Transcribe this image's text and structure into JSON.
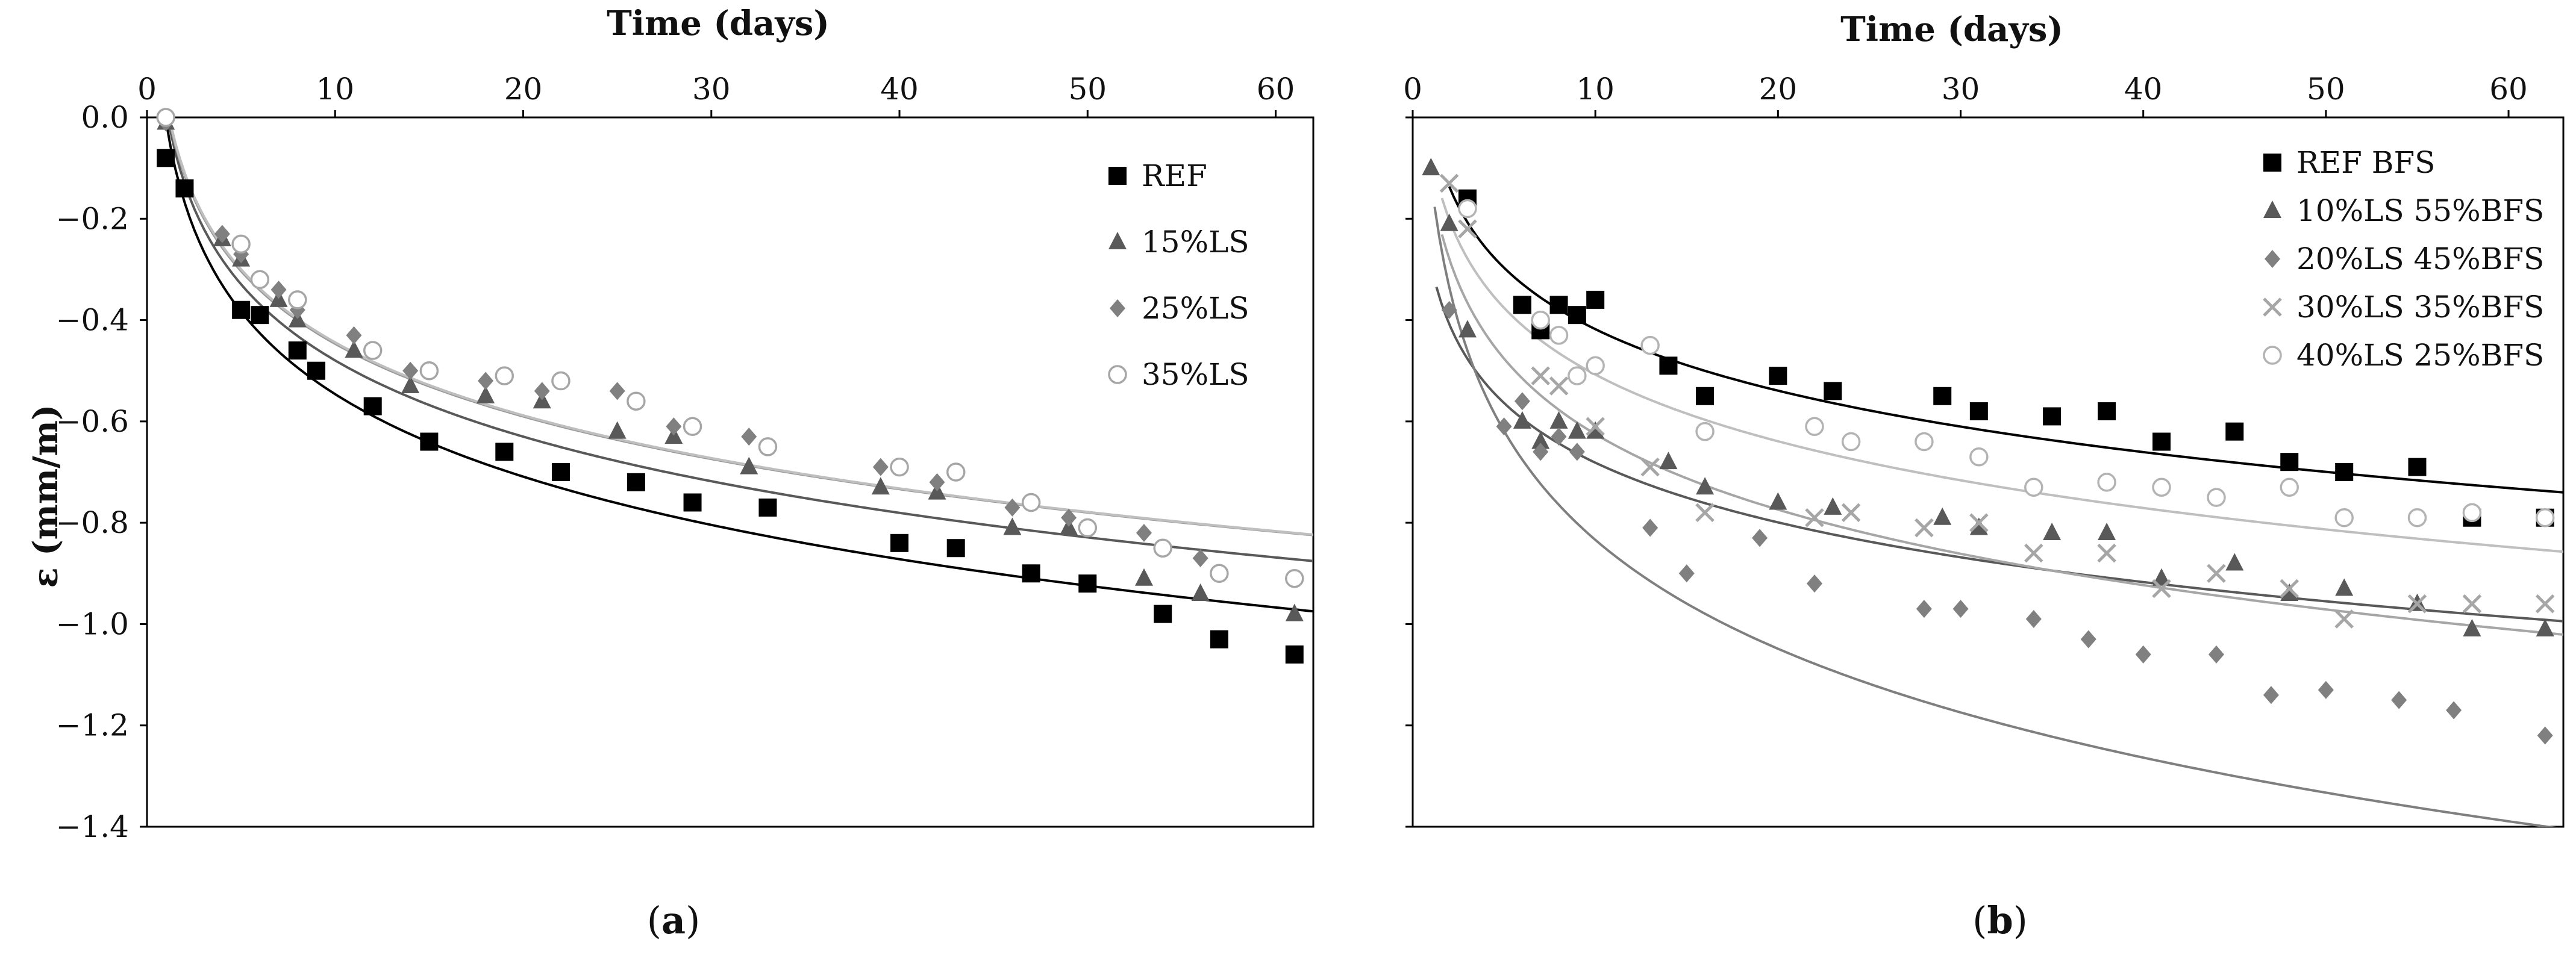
{
  "figure": {
    "captions": [
      {
        "open": "(",
        "letter": "a",
        "close": ")"
      },
      {
        "open": "(",
        "letter": "b",
        "close": ")"
      }
    ]
  },
  "chart_data": [
    {
      "type": "scatter",
      "panel": "a",
      "xlabel": "Time (days)",
      "ylabel": "ε (mm/m)",
      "xlim": [
        0,
        62
      ],
      "ylim": [
        -1.4,
        0.0
      ],
      "xticks": [
        "0",
        "10",
        "20",
        "30",
        "40",
        "50",
        "60"
      ],
      "yticks": [
        "0.0",
        "−0.2",
        "−0.4",
        "−0.6",
        "−0.8",
        "−1.0",
        "−1.2",
        "−1.4"
      ],
      "legend_position": "top-right",
      "series": [
        {
          "name": "REF",
          "marker": "square",
          "color": "#000000",
          "line_color": "#000000",
          "points": [
            [
              1,
              -0.08
            ],
            [
              2,
              -0.14
            ],
            [
              5,
              -0.38
            ],
            [
              6,
              -0.39
            ],
            [
              8,
              -0.46
            ],
            [
              9,
              -0.5
            ],
            [
              12,
              -0.57
            ],
            [
              15,
              -0.64
            ],
            [
              19,
              -0.66
            ],
            [
              22,
              -0.7
            ],
            [
              26,
              -0.72
            ],
            [
              29,
              -0.76
            ],
            [
              33,
              -0.77
            ],
            [
              40,
              -0.84
            ],
            [
              43,
              -0.85
            ],
            [
              47,
              -0.9
            ],
            [
              50,
              -0.92
            ],
            [
              54,
              -0.98
            ],
            [
              57,
              -1.03
            ],
            [
              61,
              -1.06
            ]
          ],
          "fit": {
            "a": -0.005,
            "b": -0.235,
            "x0": 1
          }
        },
        {
          "name": "15%LS",
          "marker": "triangle",
          "color": "#595959",
          "line_color": "#595959",
          "points": [
            [
              1,
              -0.01
            ],
            [
              4,
              -0.24
            ],
            [
              5,
              -0.28
            ],
            [
              7,
              -0.36
            ],
            [
              8,
              -0.4
            ],
            [
              11,
              -0.46
            ],
            [
              14,
              -0.53
            ],
            [
              18,
              -0.55
            ],
            [
              21,
              -0.56
            ],
            [
              25,
              -0.62
            ],
            [
              28,
              -0.63
            ],
            [
              32,
              -0.69
            ],
            [
              39,
              -0.73
            ],
            [
              42,
              -0.74
            ],
            [
              46,
              -0.81
            ],
            [
              49,
              -0.81
            ],
            [
              53,
              -0.91
            ],
            [
              56,
              -0.94
            ],
            [
              61,
              -0.98
            ]
          ],
          "fit": {
            "a": 0.02,
            "b": -0.217,
            "x0": 1
          }
        },
        {
          "name": "25%LS",
          "marker": "diamond",
          "color": "#808080",
          "line_color": "#999999",
          "points": [
            [
              1,
              -0.01
            ],
            [
              4,
              -0.23
            ],
            [
              5,
              -0.27
            ],
            [
              7,
              -0.34
            ],
            [
              8,
              -0.38
            ],
            [
              11,
              -0.43
            ],
            [
              14,
              -0.5
            ],
            [
              18,
              -0.52
            ],
            [
              21,
              -0.54
            ],
            [
              25,
              -0.54
            ],
            [
              28,
              -0.61
            ],
            [
              32,
              -0.63
            ],
            [
              39,
              -0.69
            ],
            [
              42,
              -0.72
            ],
            [
              46,
              -0.77
            ],
            [
              49,
              -0.79
            ],
            [
              53,
              -0.82
            ],
            [
              56,
              -0.87
            ],
            [
              61,
              -0.91
            ]
          ],
          "fit": {
            "a": 0.03,
            "b": -0.207,
            "x0": 1
          }
        },
        {
          "name": "35%LS",
          "marker": "circle",
          "color": "#a6a6a6",
          "line_color": "#bfbfbf",
          "points": [
            [
              1,
              0.0
            ],
            [
              5,
              -0.25
            ],
            [
              6,
              -0.32
            ],
            [
              8,
              -0.36
            ],
            [
              12,
              -0.46
            ],
            [
              15,
              -0.5
            ],
            [
              19,
              -0.51
            ],
            [
              22,
              -0.52
            ],
            [
              26,
              -0.56
            ],
            [
              29,
              -0.61
            ],
            [
              33,
              -0.65
            ],
            [
              40,
              -0.69
            ],
            [
              43,
              -0.7
            ],
            [
              47,
              -0.76
            ],
            [
              50,
              -0.81
            ],
            [
              54,
              -0.85
            ],
            [
              57,
              -0.9
            ],
            [
              61,
              -0.91
            ]
          ],
          "fit": {
            "a": 0.035,
            "b": -0.208,
            "x0": 1
          }
        }
      ]
    },
    {
      "type": "scatter",
      "panel": "b",
      "xlabel": "Time (days)",
      "ylabel": "",
      "xlim": [
        0,
        63
      ],
      "ylim": [
        -1.4,
        0.0
      ],
      "xticks": [
        "0",
        "10",
        "20",
        "30",
        "40",
        "50",
        "60"
      ],
      "yticks": [],
      "legend_position": "top-right",
      "series": [
        {
          "name": "REF BFS",
          "marker": "square",
          "color": "#000000",
          "line_color": "#000000",
          "points": [
            [
              3,
              -0.16
            ],
            [
              6,
              -0.37
            ],
            [
              7,
              -0.42
            ],
            [
              8,
              -0.37
            ],
            [
              9,
              -0.39
            ],
            [
              10,
              -0.36
            ],
            [
              14,
              -0.49
            ],
            [
              16,
              -0.55
            ],
            [
              20,
              -0.51
            ],
            [
              23,
              -0.54
            ],
            [
              29,
              -0.55
            ],
            [
              31,
              -0.58
            ],
            [
              35,
              -0.59
            ],
            [
              38,
              -0.58
            ],
            [
              41,
              -0.64
            ],
            [
              45,
              -0.62
            ],
            [
              48,
              -0.68
            ],
            [
              51,
              -0.7
            ],
            [
              55,
              -0.69
            ],
            [
              58,
              -0.79
            ],
            [
              62,
              -0.79
            ]
          ],
          "fit": {
            "a": -0.015,
            "b": -0.175,
            "x0": 2
          }
        },
        {
          "name": "10%LS 55%BFS",
          "marker": "triangle",
          "color": "#595959",
          "line_color": "#595959",
          "points": [
            [
              1,
              -0.1
            ],
            [
              2,
              -0.21
            ],
            [
              3,
              -0.42
            ],
            [
              6,
              -0.6
            ],
            [
              7,
              -0.64
            ],
            [
              8,
              -0.6
            ],
            [
              9,
              -0.62
            ],
            [
              10,
              -0.62
            ],
            [
              14,
              -0.68
            ],
            [
              16,
              -0.73
            ],
            [
              20,
              -0.76
            ],
            [
              23,
              -0.77
            ],
            [
              29,
              -0.79
            ],
            [
              31,
              -0.81
            ],
            [
              35,
              -0.82
            ],
            [
              38,
              -0.82
            ],
            [
              41,
              -0.91
            ],
            [
              45,
              -0.88
            ],
            [
              48,
              -0.94
            ],
            [
              51,
              -0.93
            ],
            [
              55,
              -0.96
            ],
            [
              58,
              -1.01
            ],
            [
              62,
              -1.01
            ]
          ],
          "fit": {
            "a": -0.29,
            "b": -0.17,
            "x0": 1.3
          }
        },
        {
          "name": "20%LS 45%BFS",
          "marker": "diamond",
          "color": "#808080",
          "line_color": "#7f7f7f",
          "points": [
            [
              2,
              -0.38
            ],
            [
              5,
              -0.61
            ],
            [
              6,
              -0.56
            ],
            [
              7,
              -0.66
            ],
            [
              8,
              -0.63
            ],
            [
              9,
              -0.66
            ],
            [
              13,
              -0.81
            ],
            [
              15,
              -0.9
            ],
            [
              19,
              -0.83
            ],
            [
              22,
              -0.92
            ],
            [
              28,
              -0.97
            ],
            [
              30,
              -0.97
            ],
            [
              34,
              -0.99
            ],
            [
              37,
              -1.03
            ],
            [
              40,
              -1.06
            ],
            [
              44,
              -1.06
            ],
            [
              47,
              -1.14
            ],
            [
              50,
              -1.13
            ],
            [
              54,
              -1.15
            ],
            [
              57,
              -1.17
            ],
            [
              62,
              -1.22
            ]
          ],
          "fit": {
            "a": -0.12,
            "b": -0.31,
            "x0": 1.2
          }
        },
        {
          "name": "30%LS 35%BFS",
          "marker": "cross",
          "color": "#a6a6a6",
          "line_color": "#a6a6a6",
          "points": [
            [
              2,
              -0.13
            ],
            [
              3,
              -0.22
            ],
            [
              7,
              -0.51
            ],
            [
              8,
              -0.53
            ],
            [
              10,
              -0.61
            ],
            [
              13,
              -0.69
            ],
            [
              16,
              -0.78
            ],
            [
              22,
              -0.79
            ],
            [
              24,
              -0.78
            ],
            [
              28,
              -0.81
            ],
            [
              31,
              -0.8
            ],
            [
              34,
              -0.86
            ],
            [
              38,
              -0.86
            ],
            [
              41,
              -0.93
            ],
            [
              44,
              -0.9
            ],
            [
              48,
              -0.93
            ],
            [
              51,
              -0.99
            ],
            [
              55,
              -0.96
            ],
            [
              58,
              -0.96
            ],
            [
              62,
              -0.96
            ]
          ],
          "fit": {
            "a": -0.13,
            "b": -0.215,
            "x0": 1.6
          }
        },
        {
          "name": "40%LS 25%BFS",
          "marker": "circle",
          "color": "#b3b3b3",
          "line_color": "#bfbfbf",
          "points": [
            [
              3,
              -0.18
            ],
            [
              7,
              -0.4
            ],
            [
              8,
              -0.43
            ],
            [
              9,
              -0.51
            ],
            [
              10,
              -0.49
            ],
            [
              13,
              -0.45
            ],
            [
              16,
              -0.62
            ],
            [
              22,
              -0.61
            ],
            [
              24,
              -0.64
            ],
            [
              28,
              -0.64
            ],
            [
              31,
              -0.67
            ],
            [
              34,
              -0.73
            ],
            [
              38,
              -0.72
            ],
            [
              41,
              -0.73
            ],
            [
              44,
              -0.75
            ],
            [
              48,
              -0.73
            ],
            [
              51,
              -0.79
            ],
            [
              55,
              -0.79
            ],
            [
              58,
              -0.78
            ],
            [
              62,
              -0.79
            ]
          ],
          "fit": {
            "a": -0.07,
            "b": -0.19,
            "x0": 1.6
          }
        }
      ]
    }
  ]
}
